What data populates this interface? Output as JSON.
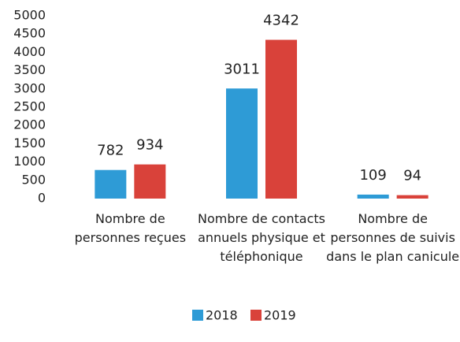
{
  "chart_data": {
    "type": "bar",
    "categories": [
      "Nombre de personnes reçues",
      "Nombre de contacts annuels physique et téléphonique",
      "Nombre de personnes de suivis dans le plan canicule"
    ],
    "series": [
      {
        "name": "2018",
        "color": "#2e9bd6",
        "values": [
          782,
          3011,
          109
        ]
      },
      {
        "name": "2019",
        "color": "#d9423a",
        "values": [
          934,
          4342,
          94
        ]
      }
    ],
    "ylim": [
      0,
      5000
    ],
    "yticks": [
      0,
      500,
      1000,
      1500,
      2000,
      2500,
      3000,
      3500,
      4000,
      4500,
      5000
    ],
    "legend": "bottom"
  }
}
